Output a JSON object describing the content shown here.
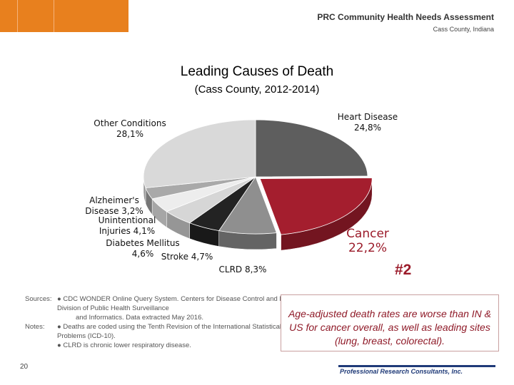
{
  "header": {
    "line1": "PRC Community Health Needs Assessment",
    "line2": "Cass County, Indiana"
  },
  "chart_data": {
    "type": "pie",
    "title": "Leading Causes of Death",
    "subtitle": "(Cass County, 2012-2014)",
    "slices": [
      {
        "name": "Heart Disease",
        "label": "Heart Disease\n24,8%",
        "value": 24.8,
        "color": "#5e5e5e"
      },
      {
        "name": "Cancer",
        "label": "Cancer\n22,2%",
        "value": 22.2,
        "color": "#a41e2e",
        "highlighted": true
      },
      {
        "name": "CLRD",
        "label": "CLRD 8,3%",
        "value": 8.3,
        "color": "#8f8f8f"
      },
      {
        "name": "Stroke",
        "label": "Stroke 4,7%",
        "value": 4.7,
        "color": "#232323"
      },
      {
        "name": "Diabetes Mellitus",
        "label": "Diabetes Mellitus\n4,6%",
        "value": 4.6,
        "color": "#d6d6d6"
      },
      {
        "name": "Unintentional Injuries",
        "label": "Unintentional\nInjuries 4,1%",
        "value": 4.1,
        "color": "#ededed"
      },
      {
        "name": "Alzheimer's Disease",
        "label": "Alzheimer's\nDisease 3,2%",
        "value": 3.2,
        "color": "#a9a9a9"
      },
      {
        "name": "Other Conditions",
        "label": "Other Conditions\n28,1%",
        "value": 28.1,
        "color": "#d9d9d9"
      }
    ],
    "annotation": "#2"
  },
  "sources": {
    "label_sources": "Sources:",
    "label_notes": "Notes:",
    "lines": [
      "●   CDC WONDER Online Query System.  Centers for Disease Control and Prevention, Epidemiology Program Office,",
      "Division of Public Health Surveillance",
      "and Informatics. Data extracted May 2016.",
      "●   Deaths are coded using the Tenth Revision of the International Statistical Classification of Diseases and Related Health",
      "Problems (ICD-10).",
      "●   CLRD is chronic lower respiratory disease."
    ]
  },
  "callout": {
    "text": "Age-adjusted death rates are worse than IN & US for cancer overall, as well as leading sites (lung, breast, colorectal)."
  },
  "footer": {
    "page_number": "20",
    "logo_text": "Professional Research Consultants, Inc."
  }
}
